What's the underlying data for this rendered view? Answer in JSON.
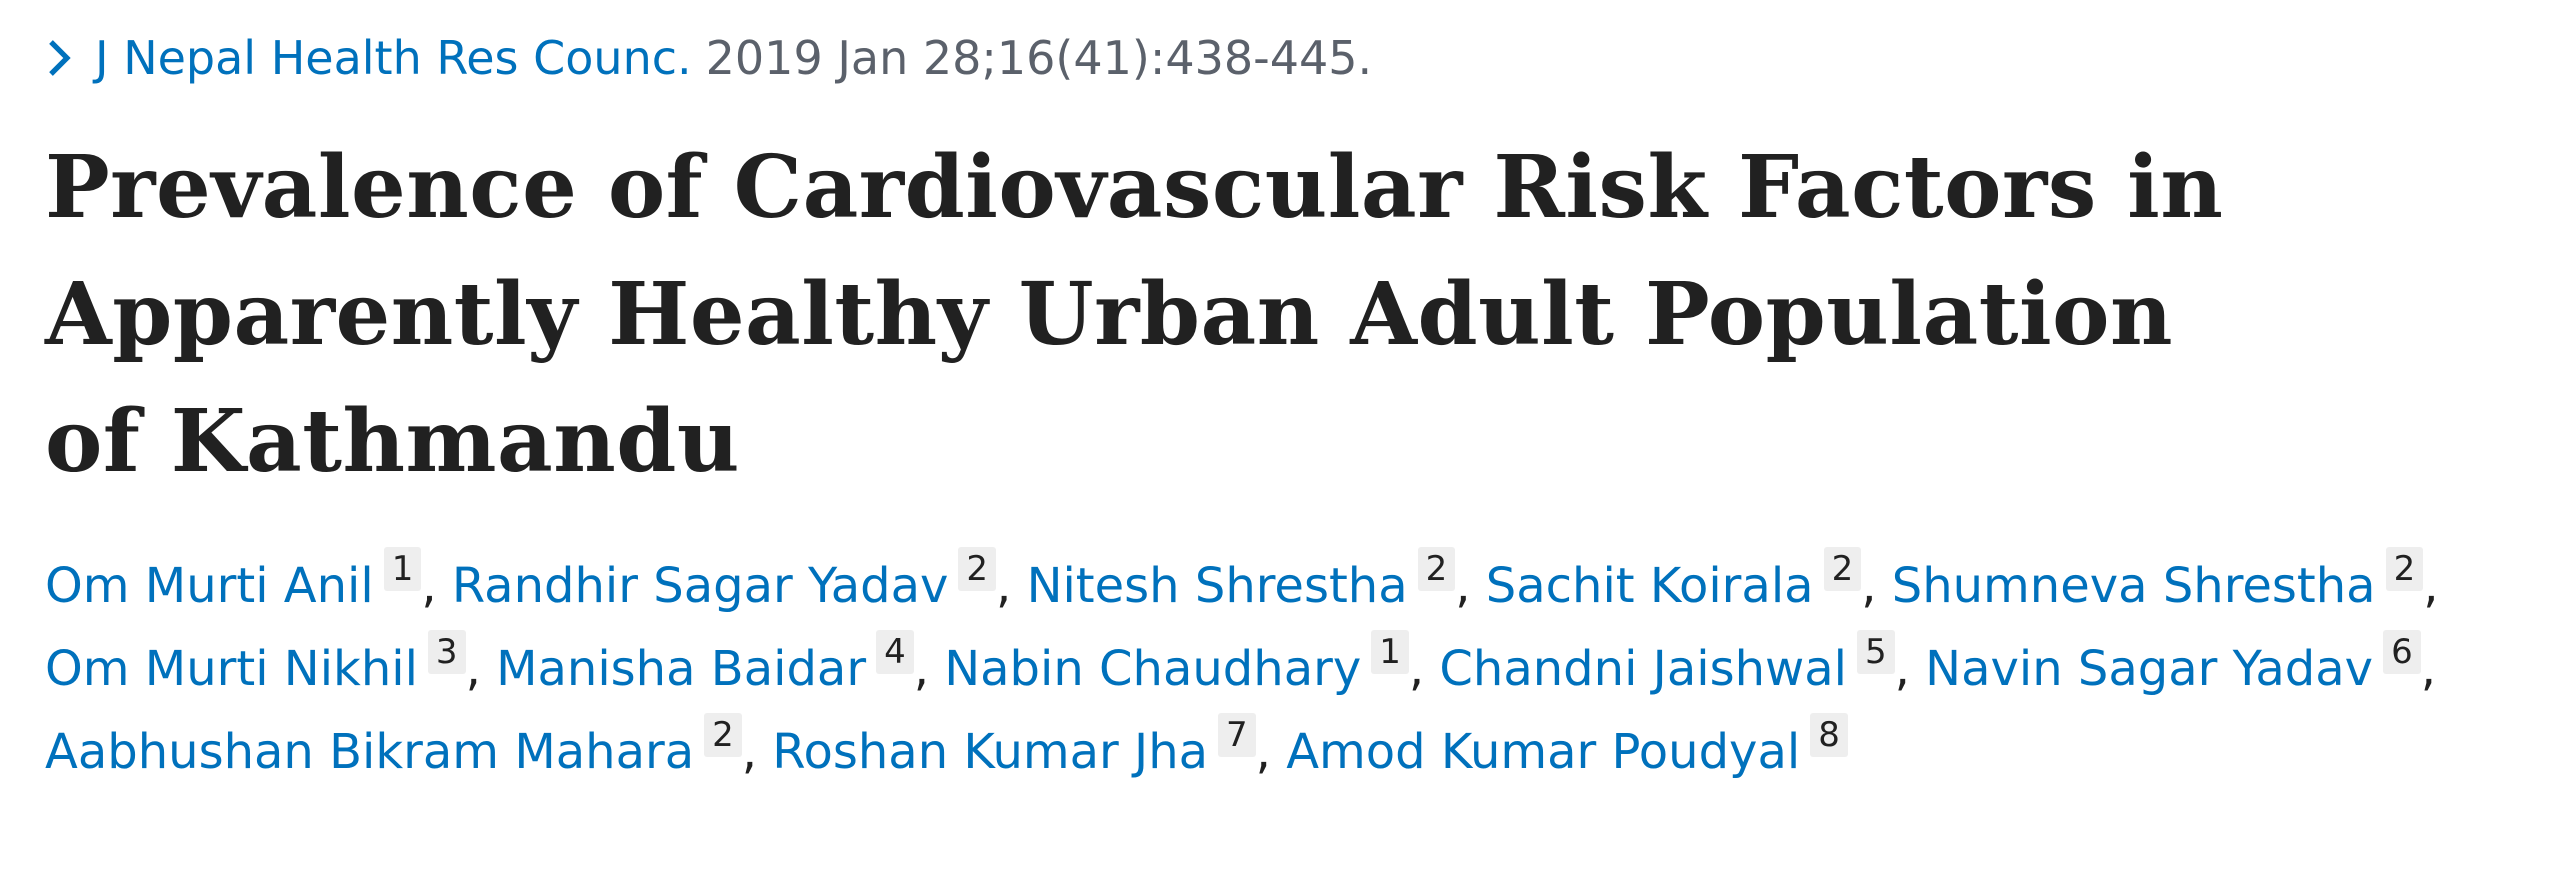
{
  "journal": {
    "name": "J Nepal Health Res Counc.",
    "citation": "2019 Jan 28;16(41):438-445."
  },
  "title": "Prevalence of Cardiovascular Risk Factors in Apparently Healthy Urban Adult Population of Kathmandu",
  "authors": [
    {
      "name": "Om Murti Anil",
      "affiliation": 1
    },
    {
      "name": "Randhir Sagar Yadav",
      "affiliation": 2
    },
    {
      "name": "Nitesh Shrestha",
      "affiliation": 2
    },
    {
      "name": "Sachit Koirala",
      "affiliation": 2
    },
    {
      "name": "Shumneva Shrestha",
      "affiliation": 2
    },
    {
      "name": "Om Murti Nikhil",
      "affiliation": 3
    },
    {
      "name": "Manisha Baidar",
      "affiliation": 4
    },
    {
      "name": "Nabin Chaudhary",
      "affiliation": 1
    },
    {
      "name": "Chandni Jaishwal",
      "affiliation": 5
    },
    {
      "name": "Navin Sagar Yadav",
      "affiliation": 6
    },
    {
      "name": "Aabhushan Bikram Mahara",
      "affiliation": 2
    },
    {
      "name": "Roshan Kumar Jha",
      "affiliation": 7
    },
    {
      "name": "Amod Kumar Poudyal",
      "affiliation": 8
    }
  ]
}
